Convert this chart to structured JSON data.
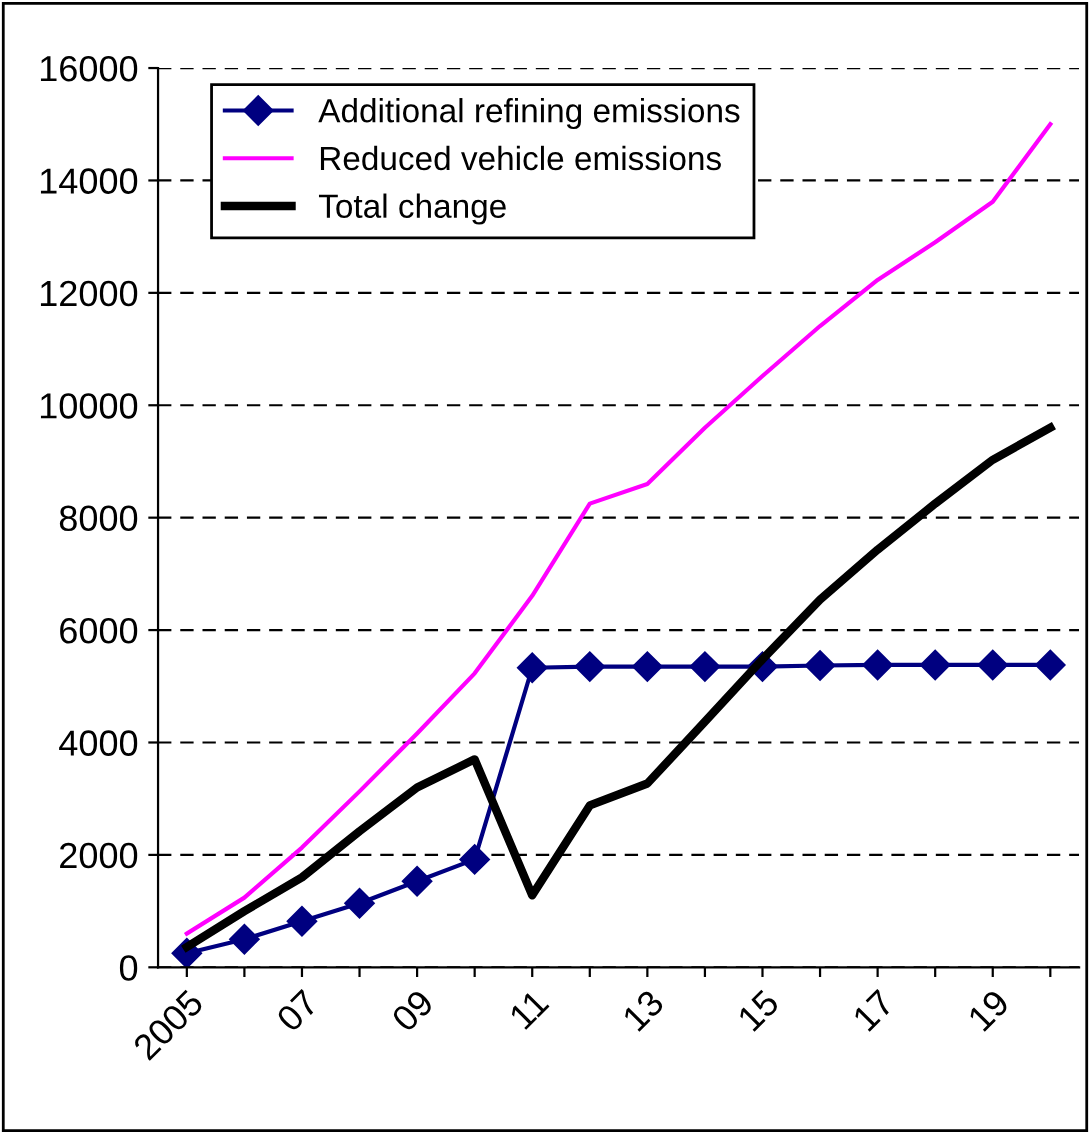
{
  "chart_data": {
    "type": "line",
    "categories": [
      "2005",
      null,
      "07",
      null,
      "09",
      null,
      "11",
      null,
      "13",
      null,
      "15",
      null,
      "17",
      null,
      "19",
      null
    ],
    "ylim": [
      0,
      16000
    ],
    "yticks": [
      0,
      2000,
      4000,
      6000,
      8000,
      10000,
      12000,
      14000,
      16000
    ],
    "grid": "y",
    "legend": "top left",
    "series": [
      {
        "name": "Additional refining emissions",
        "color": "#000080",
        "marker": "diamond",
        "values": [
          250,
          500,
          820,
          1140,
          1530,
          1920,
          5330,
          5350,
          5350,
          5350,
          5350,
          5370,
          5380,
          5380,
          5380,
          5380
        ]
      },
      {
        "name": "Reduced vehicle emissions",
        "color": "#ff00ff",
        "marker": "none",
        "values": [
          600,
          1240,
          2130,
          3130,
          4160,
          5230,
          6610,
          8250,
          8600,
          9600,
          10520,
          11410,
          12230,
          12900,
          13620,
          15000
        ]
      },
      {
        "name": "Total change",
        "color": "#000000",
        "marker": "none",
        "values": [
          360,
          1000,
          1600,
          2420,
          3200,
          3700,
          1280,
          2880,
          3270,
          4370,
          5480,
          6540,
          7430,
          8250,
          9030,
          9600
        ]
      }
    ]
  }
}
